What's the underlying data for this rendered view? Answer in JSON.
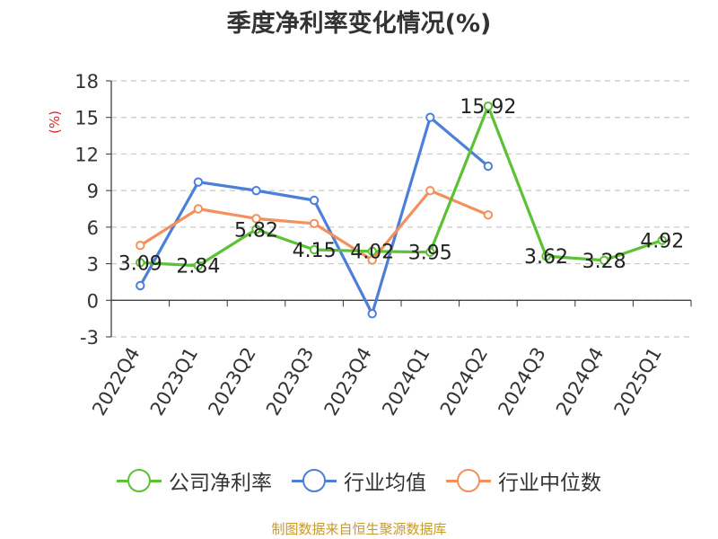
{
  "title": "季度净利率变化情况(%)",
  "unit": "(%)",
  "source": "制图数据来自恒生聚源数据库",
  "chart_data": {
    "type": "line",
    "title": "季度净利率变化情况(%)",
    "ylabel": "(%)",
    "ylim": [
      -3,
      18
    ],
    "yticks": [
      -3,
      0,
      3,
      6,
      9,
      12,
      15,
      18
    ],
    "grid": true,
    "legend_position": "bottom",
    "categories": [
      "2022Q4",
      "2023Q1",
      "2023Q2",
      "2023Q3",
      "2023Q4",
      "2024Q1",
      "2024Q2",
      "2024Q3",
      "2024Q4",
      "2025Q1"
    ],
    "series": [
      {
        "name": "公司净利率",
        "color": "#5cc134",
        "values": [
          3.09,
          2.84,
          5.82,
          4.15,
          4.02,
          3.95,
          15.92,
          3.62,
          3.28,
          4.92
        ],
        "labels": [
          "3.09",
          "2.84",
          "5.82",
          "4.15",
          "4.02",
          "3.95",
          "15.92",
          "3.62",
          "3.28",
          "4.92"
        ]
      },
      {
        "name": "行业均值",
        "color": "#4b7fd8",
        "values": [
          1.2,
          9.7,
          9.0,
          8.2,
          -1.1,
          15.0,
          11.0,
          null,
          null,
          null
        ]
      },
      {
        "name": "行业中位数",
        "color": "#f4905c",
        "values": [
          4.5,
          7.5,
          6.7,
          6.3,
          3.3,
          9.0,
          7.0,
          null,
          null,
          null
        ]
      }
    ]
  }
}
